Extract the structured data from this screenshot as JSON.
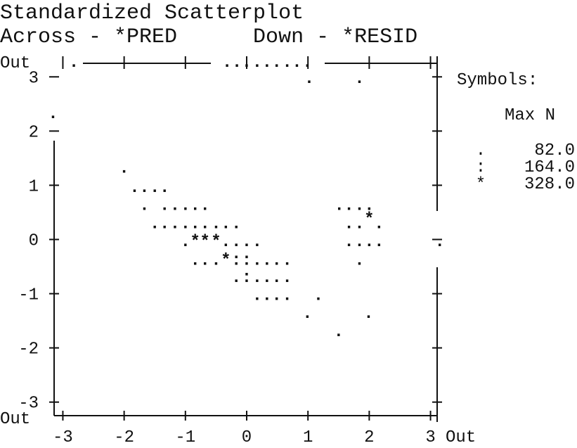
{
  "chart_data": {
    "type": "scatter",
    "title": "Standardized Scatterplot",
    "subtitle": "Across - *PRED      Down - *RESID",
    "out_label": "Out",
    "xlim": [
      -3.2,
      3.2
    ],
    "ylim": [
      -3.25,
      3.25
    ],
    "xticks": [
      -3,
      -2,
      -1,
      0,
      1,
      2,
      3
    ],
    "yticks": [
      -3,
      -2,
      -1,
      0,
      1,
      2,
      3
    ],
    "legend": {
      "title": "Symbols:",
      "header": "Max N",
      "entries": [
        {
          "symbol": ".",
          "max_n": 82.0,
          "label": "82.0"
        },
        {
          "symbol": ":",
          "max_n": 164.0,
          "label": "164.0"
        },
        {
          "symbol": "*",
          "max_n": 328.0,
          "label": "328.0"
        }
      ]
    },
    "series": [
      {
        "name": ".",
        "color": "#000000",
        "x": [
          -2.82,
          -0.32,
          -0.16,
          0,
          0.17,
          0.33,
          0.49,
          0.66,
          0.82,
          0.99,
          1.02,
          1.84,
          -3.16,
          -2.0,
          -1.83,
          -1.67,
          -1.5,
          -1.34,
          -1.67,
          -1.34,
          -1.17,
          -1.0,
          -0.84,
          -0.68,
          1.51,
          1.67,
          1.84,
          2.0,
          -1.5,
          -1.34,
          -1.17,
          -1.0,
          -0.84,
          -0.68,
          -0.5,
          -0.34,
          -0.17,
          1.67,
          1.84,
          2.16,
          -1.0,
          -0.34,
          -0.17,
          0,
          0.17,
          1.67,
          1.84,
          2.0,
          2.16,
          3.15,
          -0.84,
          -0.68,
          -0.5,
          0.17,
          0.33,
          0.49,
          0.66,
          1.84,
          -0.17,
          0.17,
          0.33,
          0.49,
          0.66,
          0.17,
          0.33,
          0.49,
          0.66,
          1.17,
          0.99,
          1.99,
          1.5
        ],
        "values": [
          3.25,
          3.25,
          3.25,
          3.25,
          3.25,
          3.25,
          3.25,
          3.25,
          3.25,
          3.25,
          2.95,
          2.95,
          2.3,
          1.3,
          0.94,
          0.94,
          0.94,
          0.94,
          0.61,
          0.61,
          0.61,
          0.61,
          0.61,
          0.61,
          0.61,
          0.61,
          0.61,
          0.61,
          0.27,
          0.27,
          0.27,
          0.27,
          0.27,
          0.27,
          0.27,
          0.27,
          0.27,
          0.27,
          0.27,
          0.27,
          -0.06,
          -0.06,
          -0.06,
          -0.06,
          -0.06,
          -0.06,
          -0.06,
          -0.06,
          -0.06,
          -0.06,
          -0.4,
          -0.4,
          -0.4,
          -0.4,
          -0.4,
          -0.4,
          -0.4,
          -0.4,
          -0.72,
          -0.72,
          -0.72,
          -0.72,
          -0.72,
          -1.05,
          -1.05,
          -1.05,
          -1.05,
          -1.05,
          -1.38,
          -1.38,
          -1.72
        ]
      },
      {
        "name": ":",
        "color": "#000000",
        "x": [
          -0.17,
          0,
          0
        ],
        "values": [
          -0.4,
          -0.4,
          -0.72
        ]
      },
      {
        "name": "*",
        "color": "#000000",
        "x": [
          2.0,
          -0.84,
          -0.68,
          -0.5,
          -0.34
        ],
        "values": [
          0.36,
          -0.06,
          -0.06,
          -0.06,
          -0.4
        ]
      }
    ]
  }
}
